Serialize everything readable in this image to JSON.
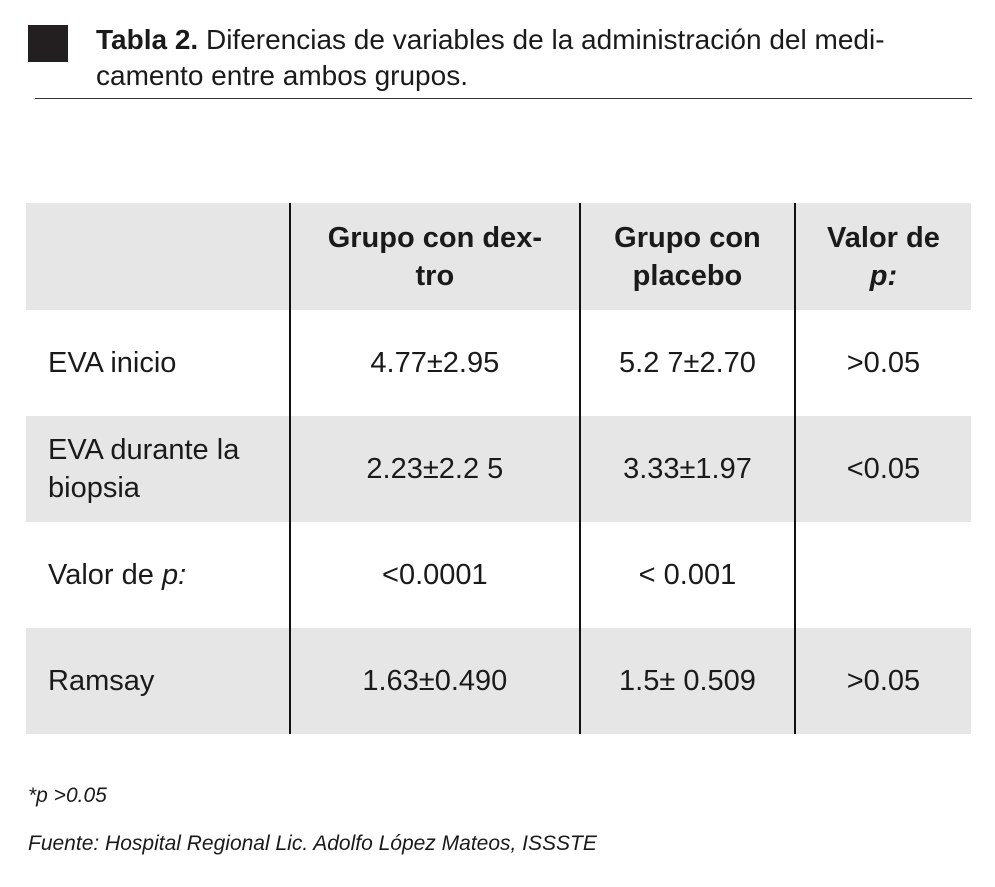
{
  "header": {
    "label": "Tabla 2.",
    "lines": [
      "Diferencias de variables de la administración del medi-",
      "camento entre ambos grupos."
    ]
  },
  "table": {
    "columns": [
      [
        "Grupo con dex-",
        "tro"
      ],
      [
        "Grupo con",
        "placebo"
      ],
      [
        "Valor de",
        "p:"
      ]
    ],
    "rows": [
      [
        [
          "EVA  inicio"
        ],
        "4.77±2.95",
        "5.2 7±2.70",
        ">0.05"
      ],
      [
        [
          "EVA durante la",
          "biopsia"
        ],
        "2.23±2.2 5",
        "3.33±1.97",
        "<0.05"
      ],
      [
        [
          "Valor de",
          "p:"
        ],
        "<0.0001",
        "< 0.001"
      ],
      [
        [
          "Ramsay"
        ],
        "1.63±0.490",
        "1.5± 0.509",
        ">0.05"
      ]
    ]
  },
  "notes": [
    "*p >0.05",
    "Fuente: Hospital Regional Lic. Adolfo López Mateos, ISSSTE"
  ]
}
